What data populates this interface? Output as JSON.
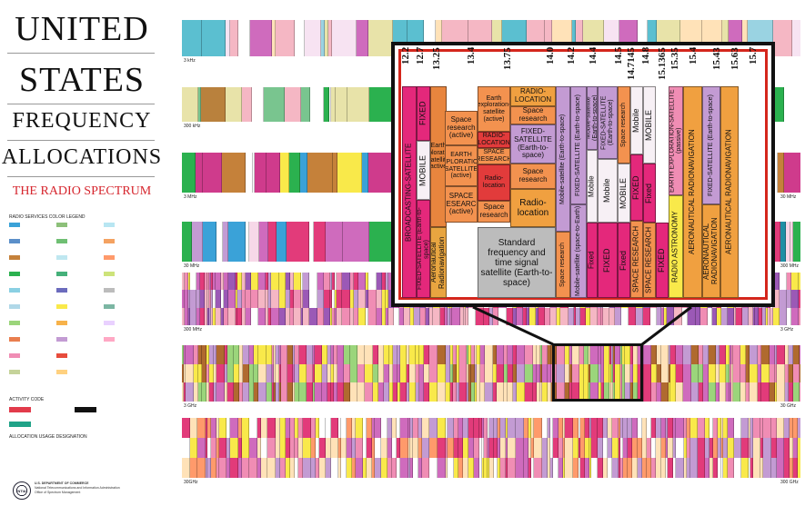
{
  "title": {
    "line1": "UNITED",
    "line2": "STATES",
    "line3": "FREQUENCY",
    "line4": "ALLOCATIONS",
    "subtitle": "THE RADIO SPECTRUM"
  },
  "legend": {
    "heading": "RADIO SERVICES COLOR LEGEND",
    "activity_heading": "ACTIVITY CODE",
    "usage_heading": "ALLOCATION USAGE DESIGNATION",
    "colors": [
      "#3aa2d8",
      "#5b8fc9",
      "#c5813a",
      "#2bb14f",
      "#8ad0e3",
      "#b0d8e8",
      "#9bd57b",
      "#e97e4e",
      "#f08db4",
      "#c5d39a",
      "#8dc07a",
      "#6fbf73",
      "#bfe7f0",
      "#45b07a",
      "#6b6bbd",
      "#f9e94a",
      "#f7b24a",
      "#c39bd3",
      "#e74c3c",
      "#ffd180",
      "#b8e6f2",
      "#f4a261",
      "#ff9a6b",
      "#cde37a",
      "#bcbcbc",
      "#7bb6a3",
      "#e9d1ff",
      "#ffa8c4"
    ],
    "activity_colors": [
      "#e23b4b",
      "#111111",
      "#20a388"
    ],
    "footer_dept": "U.S. DEPARTMENT OF COMMERCE",
    "footer_ntia": "National Telecommunications and Information Administration",
    "footer_osm": "Office of Spectrum Management",
    "seal_text": "NTIA"
  },
  "bands": [
    {
      "label_left": "3 kHz",
      "label_right": "",
      "palette": [
        "#f5b7c4",
        "#9ad3e2",
        "#ffffff",
        "#e8e3a9",
        "#5bbfd0",
        "#ffe2b8",
        "#cf6bbd",
        "#f7e3f2"
      ]
    },
    {
      "label_left": "300 kHz",
      "label_right": "",
      "palette": [
        "#b9813d",
        "#3aa2d8",
        "#ffffff",
        "#79c58f",
        "#f5b7c4",
        "#e8e3a9",
        "#2bb14f",
        "#c5813a"
      ]
    },
    {
      "label_left": "3 MHz",
      "label_right": "30 MHz",
      "palette": [
        "#f08db4",
        "#cf3b8c",
        "#c5813a",
        "#f9e94a",
        "#3aa2d8",
        "#2bb14f",
        "#ffffff",
        "#c39bd3"
      ]
    },
    {
      "label_left": "30 MHz",
      "label_right": "300 MHz",
      "palette": [
        "#c39bd3",
        "#e23b7a",
        "#3aa2d8",
        "#1e8fa5",
        "#cf6bbd",
        "#f7d8e8",
        "#2bb14f",
        "#ffffff"
      ]
    },
    {
      "label_left": "300 MHz",
      "label_right": "3 GHz",
      "palette": [
        "#e23b7a",
        "#c39bd3",
        "#f9e94a",
        "#f08db4",
        "#cf6bbd",
        "#ffffff",
        "#9b59b6",
        "#f5b7c4"
      ]
    },
    {
      "label_left": "3 GHz",
      "label_right": "30 GHz",
      "palette": [
        "#f9e94a",
        "#e23b7a",
        "#c39bd3",
        "#f08db4",
        "#cf6bbd",
        "#b06a2f",
        "#ffe2b8",
        "#9bd57b"
      ]
    },
    {
      "label_left": "30GHz",
      "label_right": "300 GHz",
      "palette": [
        "#e23b7a",
        "#f9e94a",
        "#c39bd3",
        "#cf6bbd",
        "#f08db4",
        "#ffe2b8",
        "#ff9a6b",
        "#ffffff"
      ]
    }
  ],
  "inset": {
    "frequencies": [
      "12.2",
      "12.7",
      "13.25",
      "13.4",
      "13.75",
      "14.0",
      "14.2",
      "14.4",
      "14.5",
      "14.7145",
      "14.8",
      "15.1365",
      "15.35",
      "15.4",
      "15.43",
      "15.63",
      "15.7"
    ],
    "cells": {
      "bsat": "BROADCASTING-SATELLITE",
      "fixed_sat_e2s": "FIXED-SATELLITE (Earth-to-space)",
      "fixed": "FIXED",
      "mobile": "MOBILE",
      "aero_radionav": "Aeronautical Radionavigation",
      "eess_active_1": "Earth exploration-satellite (active)",
      "space_research_active": "Space research (active)",
      "eess_active_2": "EARTH EXPLORATION-SATELLITE (active)",
      "space_research_active_caps": "SPACE RESEARCH (active)",
      "eess_active_3": "Earth exploration-satellite (active)",
      "radiolocation_caps_1": "RADIO-LOCATION",
      "space_research_caps": "SPACE RESEARCH",
      "radiolocation_1": "Radio-location",
      "space_research_1": "Space research",
      "radiolocation_2": "RADIO-LOCATION",
      "space_research_2": "Space research",
      "fss_e2s_caps": "FIXED-SATELLITE (Earth-to-space)",
      "space_research_3": "Space research",
      "radiolocation_3": "Radio-location",
      "std_freq": "Standard frequency and time signal satellite (Earth-to-space)",
      "mobile_sat_e2s": "Mobile-satellite (Earth-to-space)",
      "space_research_4": "Space research",
      "fss_e2s_2": "FIXED-SATELLITE (Earth-to-space)",
      "mobile_sat_s2e": "Mobile-satellite (space-to-Earth)",
      "mobile_sat_e2s_2": "Mobile-satellite (Earth-to-space)",
      "mobile_2": "Mobile",
      "fixed_2": "Fixed",
      "fss_e2s_3": "FIXED-SATELLITE (Earth-to-space)",
      "mobile_3": "Mobile",
      "fixed_3": "FIXED",
      "space_research_5": "Space research",
      "mobile_caps": "MOBILE",
      "fixed_4": "Fixed",
      "mobile_4": "Mobile",
      "fixed_5": "FIXED",
      "space_research_caps_2": "SPACE RESEARCH",
      "mobile_5": "MOBILE",
      "fixed_6": "Fixed",
      "space_research_caps_3": "SPACE RESEARCH",
      "fixed_7": "FIXED",
      "eess_passive": "EARTH EXPLORATION-SATELLITE (passive)",
      "radio_astronomy": "RADIO ASTRONOMY",
      "aero_radionav_caps_1": "AERONAUTICAL RADIONAVIGATION",
      "fss_e2s_4": "FIXED-SATELLITE (Earth-to-space)",
      "aero_radionav_caps_2": "AERONAUTICAL RADIONAVIGATION",
      "aero_radionav_caps_3": "AERONAUTICAL RADIONAVIGATION"
    }
  }
}
